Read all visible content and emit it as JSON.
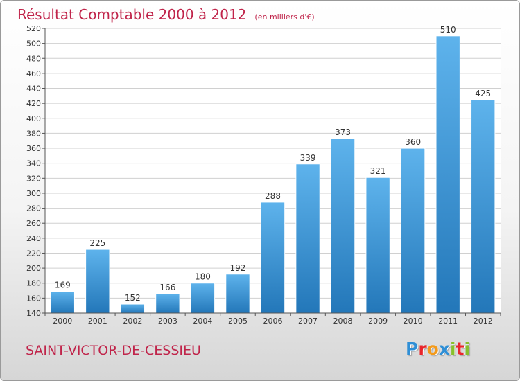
{
  "title": "Résultat Comptable 2000 à 2012",
  "subtitle": "(en milliers d'€)",
  "place": "SAINT-VICTOR-DE-CESSIEU",
  "logo": {
    "text": "Proxiti",
    "letters": [
      {
        "ch": "P",
        "color": "#2f8fd6"
      },
      {
        "ch": "r",
        "color": "#e8262b"
      },
      {
        "ch": "o",
        "color": "#f39a1b"
      },
      {
        "ch": "x",
        "color": "#2f8fd6"
      },
      {
        "ch": "i",
        "color": "#88bf2b"
      },
      {
        "ch": "t",
        "color": "#e8262b"
      },
      {
        "ch": "i",
        "color": "#88bf2b"
      }
    ]
  },
  "colors": {
    "bar_top": "#5eb3ec",
    "bar_bottom": "#2377b9",
    "accent": "#c0244a",
    "grid": "#d0d0d0"
  },
  "chart_data": {
    "type": "bar",
    "categories": [
      "2000",
      "2001",
      "2002",
      "2003",
      "2004",
      "2005",
      "2006",
      "2007",
      "2008",
      "2009",
      "2010",
      "2011",
      "2012"
    ],
    "values": [
      169,
      225,
      152,
      166,
      180,
      192,
      288,
      339,
      373,
      321,
      360,
      510,
      425
    ],
    "title": "Résultat Comptable 2000 à 2012",
    "subtitle": "(en milliers d'€)",
    "xlabel": "",
    "ylabel": "",
    "ylim": [
      140,
      520
    ],
    "yticks": [
      140,
      160,
      180,
      200,
      220,
      240,
      260,
      280,
      300,
      320,
      340,
      360,
      380,
      400,
      420,
      440,
      460,
      480,
      500,
      520
    ],
    "grid": true,
    "data_labels": true,
    "legend": "none"
  }
}
